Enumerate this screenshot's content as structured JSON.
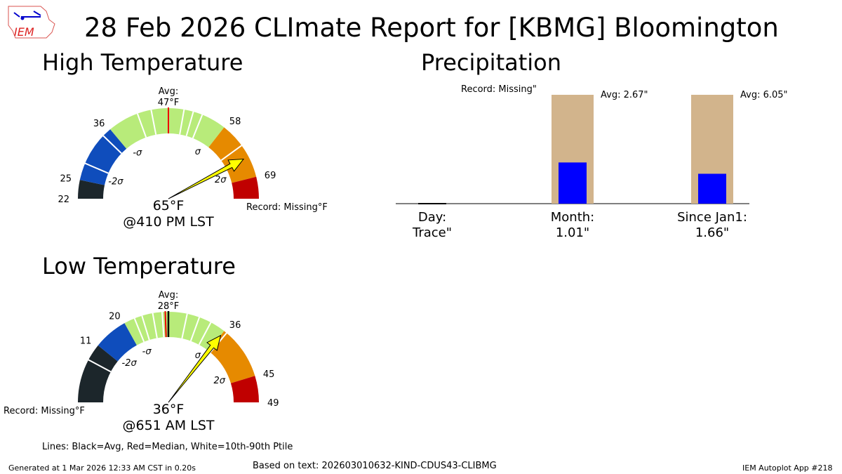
{
  "title": "28 Feb 2026 CLImate Report for [KBMG] Bloomington",
  "logo_text": "IEM",
  "chart_data": [
    {
      "type": "gauge",
      "title": "High Temperature",
      "value_label": "65°F",
      "time_label": "@410 PM LST",
      "value": 65,
      "avg_label": "Avg:\n47°F",
      "avg_line1": "Avg:",
      "avg_line2": "47°F",
      "record_label": "Record: Missing°F",
      "thresholds": [
        22,
        25,
        36,
        47,
        58,
        69
      ],
      "sigma_labels": [
        "-2σ",
        "-σ",
        "σ",
        "2σ"
      ],
      "colors": [
        "#1c262b",
        "#0f4dbc",
        "#b8eb7a",
        "#e68a00",
        "#c00000"
      ]
    },
    {
      "type": "gauge",
      "title": "Low Temperature",
      "value_label": "36°F",
      "time_label": "@651 AM LST",
      "value": 36,
      "avg_line1": "Avg:",
      "avg_line2": "28°F",
      "record_label": "Record: Missing°F",
      "thresholds": [
        11,
        20,
        28,
        36,
        45,
        49
      ],
      "sigma_labels": [
        "-2σ",
        "-σ",
        "σ",
        "2σ"
      ],
      "colors": [
        "#1c262b",
        "#0f4dbc",
        "#b8eb7a",
        "#e68a00",
        "#c00000"
      ]
    },
    {
      "type": "bar",
      "title": "Precipitation",
      "categories": [
        "Day:\nTrace\"",
        "Month:\n1.01\"",
        "Since Jan1:\n1.66\""
      ],
      "cat_line1": [
        "Day:",
        "Month:",
        "Since Jan1:"
      ],
      "cat_line2": [
        "Trace\"",
        "1.01\"",
        "1.66\""
      ],
      "values": [
        0.0001,
        1.01,
        1.66
      ],
      "averages": [
        null,
        2.67,
        6.05
      ],
      "annotations": [
        "Record: Missing\"",
        "Avg: 2.67\"",
        "Avg: 6.05\""
      ],
      "colors": {
        "observed": "#0000ff",
        "average": "#d2b48c"
      }
    }
  ],
  "legend_note": "Lines: Black=Avg, Red=Median, White=10th-90th Ptile",
  "footer": {
    "generated": "Generated at 1 Mar 2026 12:33 AM CST in 0.20s",
    "source": "Based on text: 202603010632-KIND-CDUS43-CLIBMG",
    "app": "IEM Autoplot App #218"
  }
}
